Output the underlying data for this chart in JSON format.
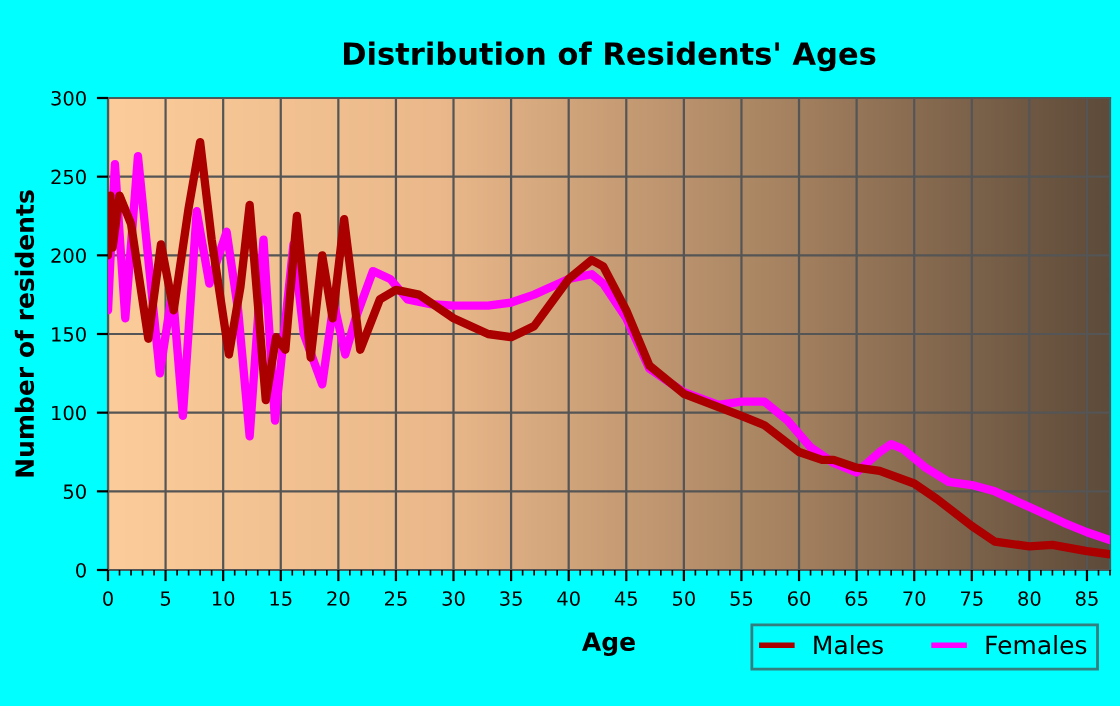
{
  "chart_data": {
    "type": "line",
    "title": "Distribution of Residents' Ages",
    "xlabel": "Age",
    "ylabel": "Number of residents",
    "xlim": [
      0,
      87
    ],
    "ylim": [
      0,
      300
    ],
    "xticks": [
      0,
      5,
      10,
      15,
      20,
      25,
      30,
      35,
      40,
      45,
      50,
      55,
      60,
      65,
      70,
      75,
      80,
      85
    ],
    "yticks": [
      0,
      50,
      100,
      150,
      200,
      250,
      300
    ],
    "grid": true,
    "legend": "bottom right",
    "line_style": "solid",
    "marker": "none",
    "series": [
      {
        "name": "Males",
        "color": "#aa0000",
        "x": [
          0,
          0.2,
          0.4,
          1,
          2,
          3.5,
          4.6,
          5.7,
          7,
          8,
          9,
          10.5,
          11.5,
          12.3,
          13.7,
          14.6,
          15.4,
          16.4,
          17.6,
          18.6,
          19.5,
          20.5,
          21.9,
          23.6,
          25,
          27,
          30,
          33,
          35,
          37,
          40,
          42,
          43,
          45,
          47,
          50,
          55,
          57,
          60,
          62,
          63,
          65,
          67,
          70,
          72,
          75,
          77,
          80,
          82,
          85,
          87
        ],
        "values": [
          200,
          238,
          205,
          238,
          220,
          147,
          207,
          165,
          230,
          272,
          210,
          137,
          180,
          232,
          108,
          148,
          140,
          225,
          135,
          200,
          160,
          223,
          140,
          172,
          178,
          175,
          160,
          150,
          148,
          155,
          185,
          197,
          193,
          165,
          130,
          112,
          98,
          92,
          75,
          70,
          70,
          65,
          63,
          55,
          45,
          28,
          18,
          15,
          16,
          12,
          10
        ]
      },
      {
        "name": "Females",
        "color": "#ff00ff",
        "x": [
          0,
          0.6,
          1.5,
          2.6,
          4.5,
          5.6,
          6.5,
          7.7,
          8.8,
          10.3,
          11.3,
          12.3,
          13.5,
          14.5,
          16.1,
          17,
          18.6,
          19.6,
          20.6,
          21.5,
          23,
          24.5,
          26,
          28,
          30,
          33,
          35,
          37,
          40,
          42,
          43,
          45,
          47,
          50,
          53,
          55,
          57,
          59,
          61,
          63,
          65,
          67,
          68,
          69,
          71,
          73,
          75,
          77,
          80,
          83,
          85,
          87
        ],
        "values": [
          165,
          258,
          160,
          263,
          125,
          178,
          98,
          228,
          182,
          215,
          165,
          85,
          210,
          95,
          207,
          150,
          118,
          170,
          137,
          160,
          190,
          185,
          172,
          169,
          168,
          168,
          170,
          175,
          185,
          188,
          182,
          160,
          128,
          113,
          105,
          107,
          107,
          95,
          78,
          68,
          62,
          75,
          80,
          77,
          65,
          56,
          54,
          50,
          40,
          30,
          24,
          19
        ]
      }
    ]
  }
}
